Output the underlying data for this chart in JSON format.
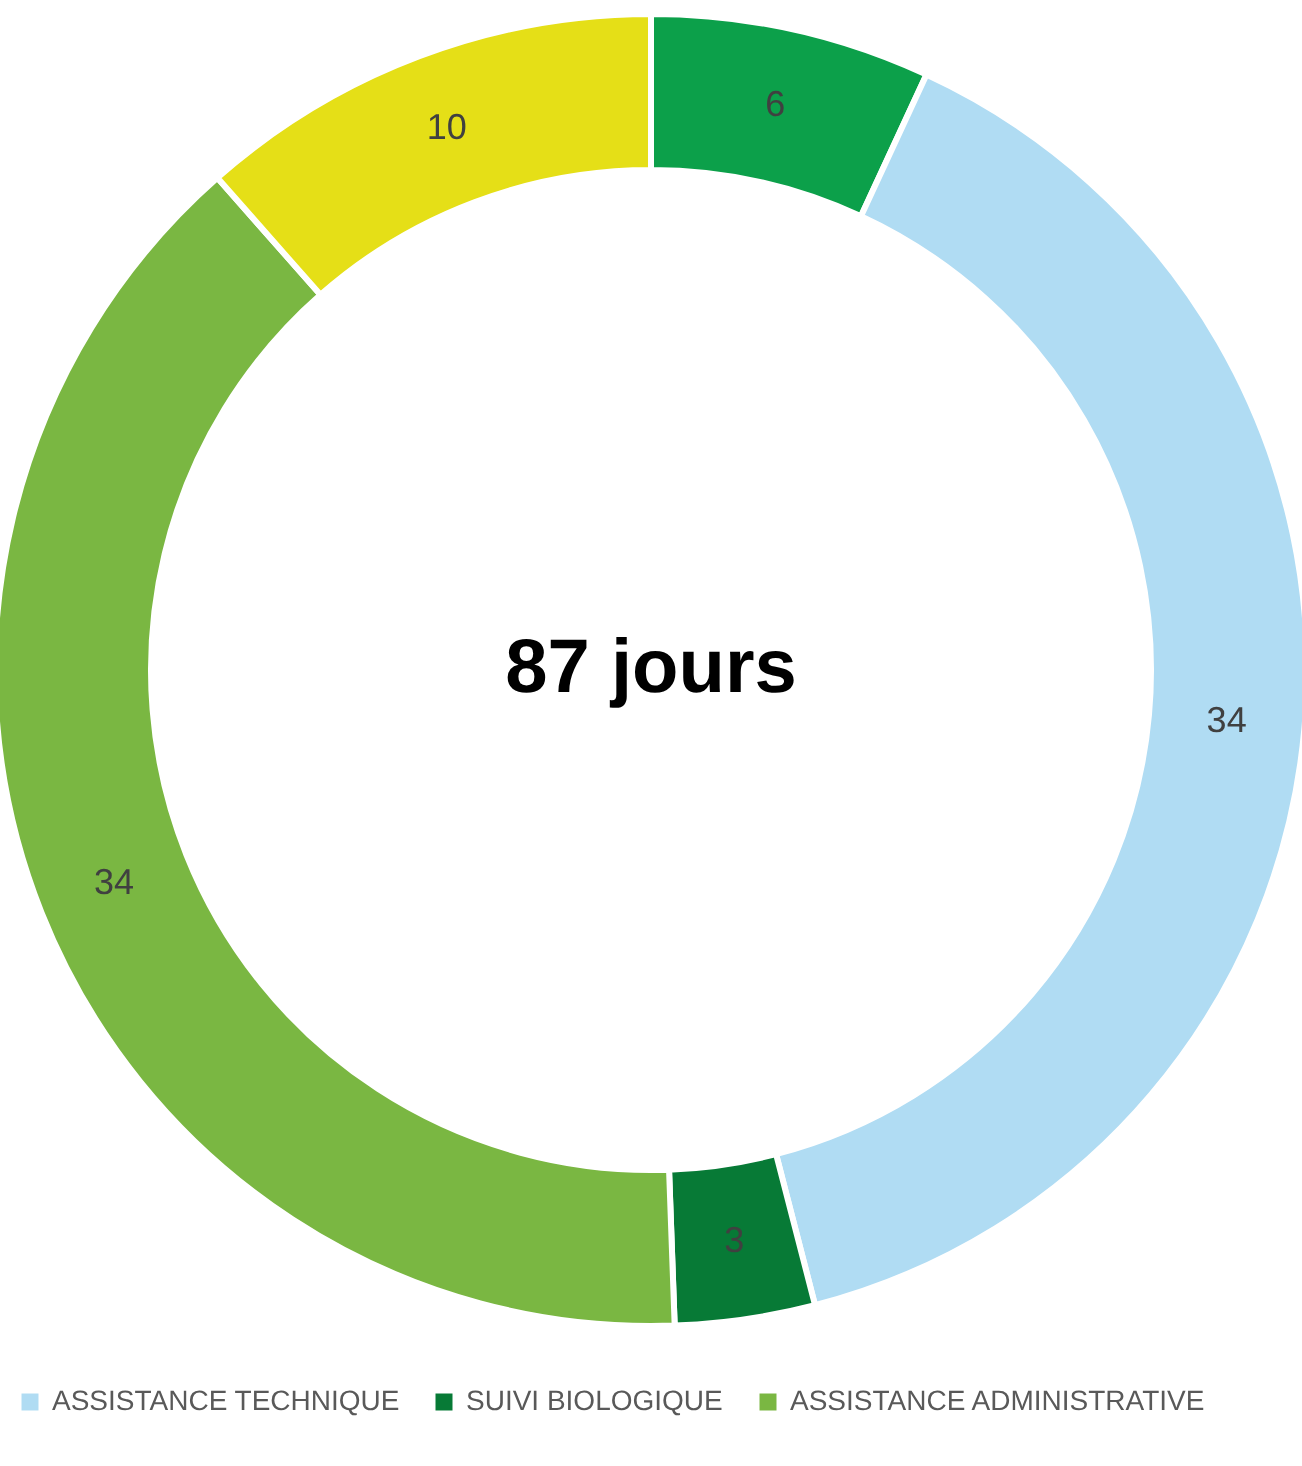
{
  "chart_data": {
    "type": "donut",
    "title": "87 jours",
    "categories": [
      null,
      "ASSISTANCE TECHNIQUE",
      "SUIVI BIOLOGIQUE",
      "ASSISTANCE ADMINISTRATIVE",
      null
    ],
    "values": [
      6,
      34,
      3,
      34,
      10
    ],
    "colors": [
      "#0ca04a",
      "#b0dcf3",
      "#077a36",
      "#7ab742",
      "#e5df17"
    ],
    "data_labels": true,
    "legend": "bottom"
  }
}
